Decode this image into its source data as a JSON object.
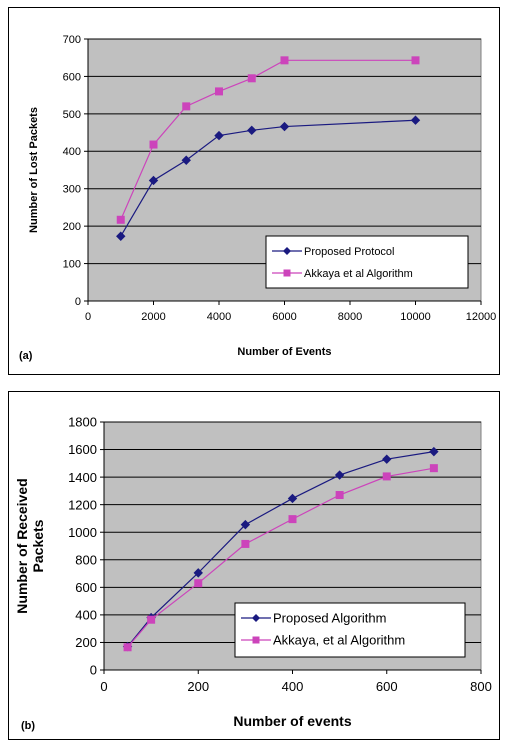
{
  "chart_data": [
    {
      "type": "line",
      "panel_label": "(a)",
      "xlabel": "Number of Events",
      "ylabel": "Number of Lost Packets",
      "xlim": [
        0,
        12000
      ],
      "ylim": [
        0,
        700
      ],
      "xticks": [
        0,
        2000,
        4000,
        6000,
        8000,
        10000,
        12000
      ],
      "yticks": [
        0,
        100,
        200,
        300,
        400,
        500,
        600,
        700
      ],
      "grid": "horizontal",
      "legend_position": "bottom-right",
      "plot_background": "#c0c0c0",
      "series": [
        {
          "name": "Proposed Protocol",
          "color": "#1a1a80",
          "marker": "diamond",
          "x": [
            1000,
            2000,
            3000,
            4000,
            5000,
            6000,
            10000
          ],
          "y": [
            173,
            322,
            376,
            442,
            456,
            466,
            483
          ]
        },
        {
          "name": "Akkaya et al Algorithm",
          "color": "#cc44bb",
          "marker": "square",
          "x": [
            1000,
            2000,
            3000,
            4000,
            5000,
            6000,
            10000
          ],
          "y": [
            217,
            418,
            520,
            560,
            595,
            643,
            643
          ]
        }
      ]
    },
    {
      "type": "line",
      "panel_label": "(b)",
      "xlabel": "Number of events",
      "ylabel": "Number of Received Packets",
      "ylabel_lines": [
        "Number of Received",
        "Packets"
      ],
      "xlim": [
        0,
        800
      ],
      "ylim": [
        0,
        1800
      ],
      "xticks": [
        0,
        200,
        400,
        600,
        800
      ],
      "yticks": [
        0,
        200,
        400,
        600,
        800,
        1000,
        1200,
        1400,
        1600,
        1800
      ],
      "grid": "horizontal",
      "legend_position": "bottom-right",
      "plot_background": "#c0c0c0",
      "series": [
        {
          "name": "Proposed Algorithm",
          "color": "#1a1a80",
          "marker": "diamond",
          "x": [
            50,
            100,
            200,
            300,
            400,
            500,
            600,
            700
          ],
          "y": [
            170,
            380,
            705,
            1055,
            1245,
            1415,
            1530,
            1585
          ]
        },
        {
          "name": "Akkaya, et al Algorithm",
          "color": "#cc44bb",
          "marker": "square",
          "x": [
            50,
            100,
            200,
            300,
            400,
            500,
            600,
            700
          ],
          "y": [
            165,
            365,
            630,
            915,
            1095,
            1270,
            1405,
            1465
          ]
        }
      ]
    }
  ]
}
